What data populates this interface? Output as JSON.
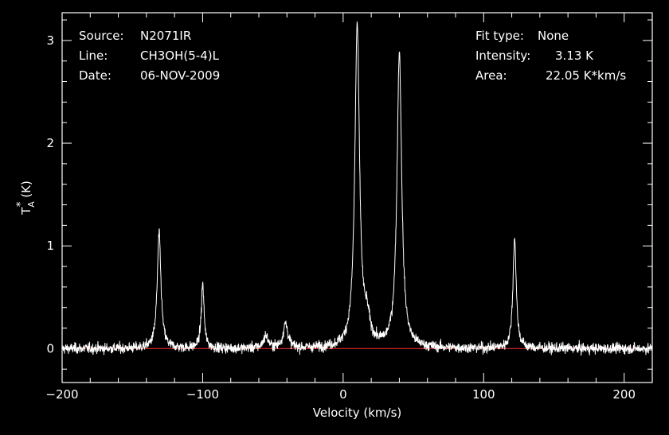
{
  "chart_data": {
    "type": "line",
    "xlabel": "Velocity (km/s)",
    "ylabel": "T",
    "ylabel_sub": "A",
    "ylabel_sup": "*",
    "ylabel_unit": "(K)",
    "xlim": [
      -200,
      220
    ],
    "ylim": [
      -0.33,
      3.27
    ],
    "xticks": [
      {
        "value": -200,
        "label": "−200"
      },
      {
        "value": -100,
        "label": "−100"
      },
      {
        "value": 0,
        "label": "0"
      },
      {
        "value": 100,
        "label": "100"
      },
      {
        "value": 200,
        "label": "200"
      }
    ],
    "yticks": [
      {
        "value": 0,
        "label": "0"
      },
      {
        "value": 1,
        "label": "1"
      },
      {
        "value": 2,
        "label": "2"
      },
      {
        "value": 3,
        "label": "3"
      }
    ],
    "baseline": 0,
    "noise_rms": 0.04,
    "peaks": [
      {
        "center": -131,
        "amp": 1.12,
        "width": 1.6
      },
      {
        "center": -100,
        "amp": 0.63,
        "width": 1.2
      },
      {
        "center": -55,
        "amp": 0.12,
        "width": 2.0
      },
      {
        "center": -41,
        "amp": 0.24,
        "width": 2.0
      },
      {
        "center": 10,
        "amp": 3.13,
        "width": 2.0
      },
      {
        "center": 17,
        "amp": 0.22,
        "width": 2.5
      },
      {
        "center": 40,
        "amp": 2.88,
        "width": 2.0
      },
      {
        "center": 122,
        "amp": 1.08,
        "width": 1.4
      }
    ],
    "colors": {
      "spectrum": "#ffffff",
      "baseline": "#cc2222",
      "axes": "#ffffff",
      "background": "#000000"
    }
  },
  "info": {
    "source_label": "Source:",
    "source_value": "N2071IR",
    "line_label": "Line:",
    "line_value": "CH3OH(5-4)L",
    "date_label": "Date:",
    "date_value": "06-NOV-2009",
    "fit_label": "Fit type:",
    "fit_value": "None",
    "intensity_label": "Intensity:",
    "intensity_value": "3.13 K",
    "area_label": "Area:",
    "area_value": "22.05 K*km/s"
  }
}
